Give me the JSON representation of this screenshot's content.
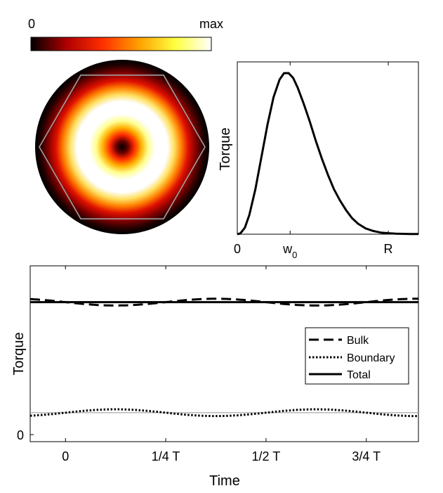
{
  "colorbar": {
    "min_label": "0",
    "max_label": "max",
    "colormap": "hot",
    "stops": [
      "#000000",
      "#b00000",
      "#ff3000",
      "#ffa000",
      "#ffff40",
      "#ffffff"
    ]
  },
  "beam_image": {
    "hexagon_color": "#a0a0a0",
    "background": "#000000"
  },
  "chart_data": [
    {
      "type": "line",
      "title": "",
      "xlabel": "",
      "ylabel": "Torque",
      "xlim": [
        0,
        1.2
      ],
      "ylim": [
        0,
        1.0
      ],
      "xticks": [
        {
          "value": 0,
          "label": "0"
        },
        {
          "value": 0.35,
          "label": "w",
          "sub": "0"
        },
        {
          "value": 1.0,
          "label": "R"
        }
      ],
      "series": [
        {
          "name": "Torque profile",
          "x": [
            0,
            0.02,
            0.05,
            0.08,
            0.12,
            0.16,
            0.2,
            0.24,
            0.28,
            0.31,
            0.34,
            0.37,
            0.4,
            0.44,
            0.48,
            0.52,
            0.56,
            0.6,
            0.64,
            0.68,
            0.72,
            0.76,
            0.8,
            0.85,
            0.9,
            0.95,
            1.0,
            1.05,
            1.1,
            1.15,
            1.2
          ],
          "y": [
            0,
            0.005,
            0.04,
            0.12,
            0.28,
            0.48,
            0.68,
            0.85,
            0.96,
            1.0,
            1.0,
            0.97,
            0.91,
            0.81,
            0.7,
            0.58,
            0.47,
            0.37,
            0.28,
            0.21,
            0.15,
            0.1,
            0.065,
            0.036,
            0.02,
            0.01,
            0.006,
            0.003,
            0.002,
            0.001,
            0.001
          ]
        }
      ]
    },
    {
      "type": "line",
      "title": "",
      "xlabel": "Time",
      "ylabel": "Torque",
      "xlim": [
        -0.088,
        0.88
      ],
      "ylim": [
        0,
        1.0
      ],
      "xticks": [
        {
          "value": 0,
          "label": "0"
        },
        {
          "value": 0.25,
          "label": "1/4 T"
        },
        {
          "value": 0.5,
          "label": "1/2 T"
        },
        {
          "value": 0.75,
          "label": "3/4 T"
        }
      ],
      "yticks": [
        {
          "value": 0,
          "label": "0"
        }
      ],
      "legend": {
        "position": "right",
        "entries": [
          "Bulk",
          "Boundary",
          "Total"
        ]
      },
      "series": [
        {
          "name": "Bulk",
          "style": "dashed",
          "mean": 0.785,
          "amplitude": 0.02,
          "phase_shift": 0.125,
          "period": 0.5
        },
        {
          "name": "Boundary",
          "style": "dotted",
          "mean": 0.13,
          "amplitude": 0.02,
          "phase_shift": -0.125,
          "period": 0.5
        },
        {
          "name": "Total",
          "style": "solid",
          "mean": 0.785,
          "amplitude": 0.0,
          "phase_shift": 0,
          "period": 0.5
        }
      ],
      "reference_line": {
        "value": 0.13,
        "color": "#a0a0a0"
      }
    }
  ]
}
